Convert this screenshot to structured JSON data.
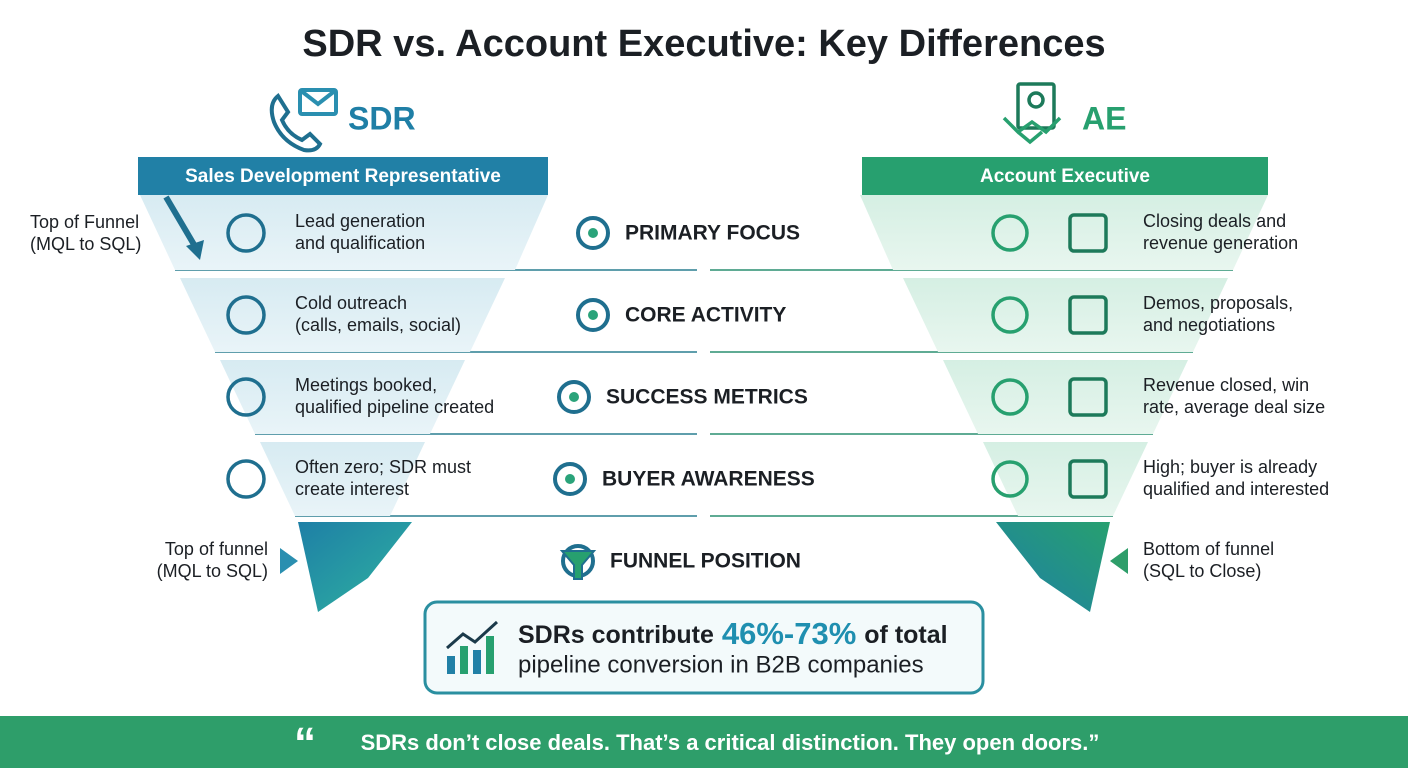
{
  "title": "SDR vs. Account Executive: Key Differences",
  "sdr": {
    "abbr": "SDR",
    "header": "Sales Development Representative",
    "side_label": [
      "Top of Funnel",
      "(MQL to SQL)"
    ]
  },
  "ae": {
    "abbr": "AE",
    "header": "Account Executive"
  },
  "rows": [
    {
      "label": "PRIMARY FOCUS",
      "sdr": [
        "Lead generation",
        "and qualification"
      ],
      "ae": [
        "Closing deals and",
        "revenue generation"
      ]
    },
    {
      "label": "CORE ACTIVITY",
      "sdr": [
        "Cold outreach",
        "(calls, emails, social)"
      ],
      "ae": [
        "Demos, proposals,",
        "and negotiations"
      ]
    },
    {
      "label": "SUCCESS METRICS",
      "sdr": [
        "Meetings booked,",
        "qualified pipeline created"
      ],
      "ae": [
        "Revenue closed, win",
        "rate, average deal size"
      ]
    },
    {
      "label": "BUYER AWARENESS",
      "sdr": [
        "Often zero; SDR must",
        "create interest"
      ],
      "ae": [
        "High; buyer is already",
        "qualified and interested"
      ]
    },
    {
      "label": "FUNNEL POSITION",
      "sdr": [
        "Top of funnel",
        "(MQL to SQL)"
      ],
      "ae": [
        "Bottom of funnel",
        "(SQL to Close)"
      ]
    }
  ],
  "stat": {
    "prefix": "SDRs contribute",
    "highlight": "46%-73%",
    "suffix": "of total",
    "line2": "pipeline conversion in B2B companies"
  },
  "quote": "SDRs don’t close deals. That’s a critical distinction. They open doors.”"
}
